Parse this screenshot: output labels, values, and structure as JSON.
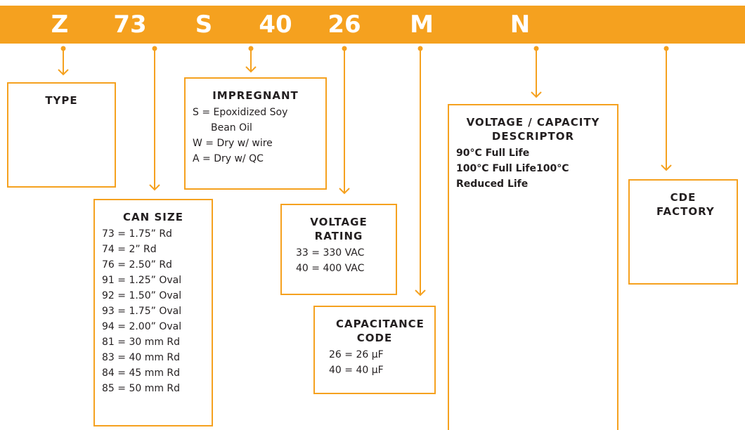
{
  "codes": [
    "Z",
    "73",
    "S",
    "40",
    "26",
    "M",
    "N"
  ],
  "boxes": [
    {
      "title": "TYPE",
      "lines": []
    },
    {
      "title": "CAN SIZE",
      "lines": [
        "73 = 1.75” Rd",
        "74 = 2” Rd",
        "76 = 2.50” Rd",
        "91 = 1.25” Oval",
        "92 = 1.50” Oval",
        "93 = 1.75” Oval",
        "94 = 2.00” Oval",
        "81 = 30 mm Rd",
        "83 = 40 mm Rd",
        "84 = 45 mm Rd",
        "85 = 50 mm Rd"
      ]
    },
    {
      "title": "IMPREGNANT",
      "lines": [
        "S = Epoxidized Soy",
        "Bean Oil",
        "W = Dry w/ wire",
        "A = Dry w/ QC"
      ]
    },
    {
      "title": "VOLTAGE RATING",
      "lines": [
        "33 = 330 VAC",
        "40 = 400 VAC"
      ]
    },
    {
      "title": "CAPACITANCE CODE",
      "lines": [
        "26 = 26 µF",
        "40 = 40 µF"
      ]
    },
    {
      "title": "VOLTAGE / CAPACITY DESCRIPTOR",
      "lines": [
        "90°C Full Life",
        "100°C Full Life100°C",
        "Reduced Life"
      ]
    },
    {
      "title": "CDE FACTORY",
      "lines": []
    }
  ]
}
